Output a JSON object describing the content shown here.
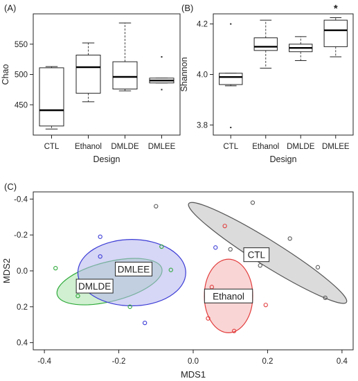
{
  "chart_data": [
    {
      "panel": "(A)",
      "type": "box",
      "categories": [
        "CTL",
        "Ethanol",
        "DMLDE",
        "DMLEE"
      ],
      "xlabel": "Design",
      "ylabel": "Chao",
      "ylim": [
        400,
        600
      ],
      "yticks": [
        "450",
        "500",
        "550"
      ],
      "boxes": [
        {
          "min": 410,
          "q1": 415,
          "median": 441,
          "q3": 511,
          "max": 513,
          "outliers": []
        },
        {
          "min": 455,
          "q1": 469,
          "median": 512,
          "q3": 532,
          "max": 552,
          "outliers": []
        },
        {
          "min": 473,
          "q1": 476,
          "median": 496,
          "q3": 521,
          "max": 585,
          "outliers": []
        },
        {
          "min": 486,
          "q1": 486,
          "median": 490,
          "q3": 494,
          "max": 494,
          "outliers": [
            529,
            475
          ]
        }
      ]
    },
    {
      "panel": "(B)",
      "type": "box",
      "categories": [
        "CTL",
        "Ethanol",
        "DMLDE",
        "DMLEE"
      ],
      "xlabel": "Design",
      "ylabel": "Shannon",
      "ylim": [
        3.76,
        4.24
      ],
      "yticks": [
        "3.8",
        "4.0",
        "4.2"
      ],
      "annotation": "*",
      "boxes": [
        {
          "min": 3.955,
          "q1": 3.96,
          "median": 3.99,
          "q3": 4.005,
          "max": 4.005,
          "outliers": [
            4.2,
            3.79
          ]
        },
        {
          "min": 4.025,
          "q1": 4.095,
          "median": 4.11,
          "q3": 4.145,
          "max": 4.215,
          "outliers": []
        },
        {
          "min": 4.055,
          "q1": 4.09,
          "median": 4.105,
          "q3": 4.12,
          "max": 4.15,
          "outliers": []
        },
        {
          "min": 4.07,
          "q1": 4.11,
          "median": 4.175,
          "q3": 4.215,
          "max": 4.225,
          "outliers": []
        }
      ]
    },
    {
      "panel": "(C)",
      "type": "scatter",
      "xlabel": "MDS1",
      "ylabel": "MDS2",
      "xlim": [
        -0.43,
        0.43
      ],
      "ylim": [
        -0.44,
        0.44
      ],
      "y_reversed": true,
      "xticks": [
        "-0.4",
        "-0.2",
        "0.0",
        "0.2",
        "0.4"
      ],
      "yticks": [
        "-0.4",
        "-0.2",
        "0.0",
        "0.2",
        "0.4"
      ],
      "series": [
        {
          "name": "CTL",
          "color": "#555555",
          "fill": "#bdbdbd",
          "ellipse": {
            "cx": 0.2,
            "cy": -0.1,
            "rx": 0.25,
            "ry": 0.07,
            "angle": 32
          },
          "label_at": [
            0.17,
            -0.09
          ],
          "points": [
            [
              -0.1,
              -0.36
            ],
            [
              0.16,
              -0.38
            ],
            [
              0.26,
              -0.18
            ],
            [
              0.18,
              -0.03
            ],
            [
              0.335,
              -0.02
            ],
            [
              0.355,
              0.15
            ],
            [
              0.1,
              -0.12
            ]
          ]
        },
        {
          "name": "Ethanol",
          "color": "#e23b3b",
          "fill": "#f6b3b3",
          "ellipse": {
            "cx": 0.095,
            "cy": 0.14,
            "rx": 0.065,
            "ry": 0.205,
            "angle": 0
          },
          "label_at": [
            0.095,
            0.14
          ],
          "points": [
            [
              0.085,
              -0.25
            ],
            [
              0.05,
              0.09
            ],
            [
              0.195,
              0.19
            ],
            [
              0.04,
              0.265
            ],
            [
              0.11,
              0.335
            ]
          ]
        },
        {
          "name": "DMLDE",
          "color": "#2eaa3a",
          "fill": "#a9e3ac",
          "ellipse": {
            "cx": -0.225,
            "cy": 0.06,
            "rx": 0.145,
            "ry": 0.11,
            "angle": -14
          },
          "label_at": [
            -0.265,
            0.085
          ],
          "points": [
            [
              -0.37,
              -0.015
            ],
            [
              -0.31,
              0.14
            ],
            [
              -0.17,
              0.2
            ],
            [
              -0.085,
              -0.135
            ],
            [
              -0.06,
              -0.005
            ]
          ]
        },
        {
          "name": "DMLEE",
          "color": "#3b3bd6",
          "fill": "#b5b5ee",
          "ellipse": {
            "cx": -0.165,
            "cy": 0.01,
            "rx": 0.145,
            "ry": 0.185,
            "angle": 0
          },
          "label_at": [
            -0.16,
            -0.01
          ],
          "points": [
            [
              -0.25,
              -0.19
            ],
            [
              -0.25,
              -0.08
            ],
            [
              -0.13,
              0.29
            ],
            [
              0.06,
              -0.13
            ]
          ]
        }
      ]
    }
  ]
}
